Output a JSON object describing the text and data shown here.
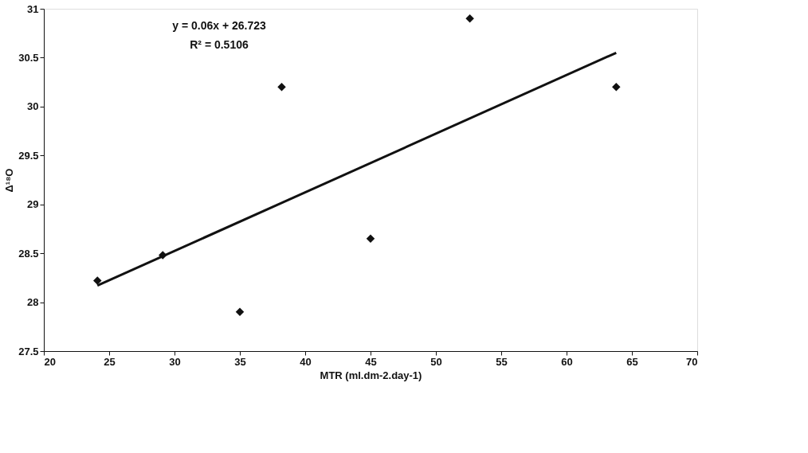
{
  "chart_data": {
    "type": "scatter",
    "xlabel": "MTR (ml.dm-2.day-1)",
    "ylabel": "Δ¹⁸O",
    "xlim": [
      20,
      70
    ],
    "xticks": [
      20,
      25,
      30,
      35,
      40,
      45,
      50,
      55,
      60,
      65,
      70
    ],
    "ylim": [
      27.5,
      31
    ],
    "yticks": [
      27.5,
      28,
      28.5,
      29,
      29.5,
      30,
      30.5,
      31
    ],
    "grid": false,
    "marker": "diamond",
    "series": [
      {
        "type": "scatter",
        "color": "#111111",
        "x": [
          24.1,
          29.1,
          35,
          38.2,
          45,
          52.6,
          63.8
        ],
        "values": [
          28.22,
          28.48,
          27.9,
          30.2,
          28.65,
          30.9,
          30.2
        ]
      },
      {
        "type": "line",
        "color": "#111111",
        "marker": "none",
        "line_style": "solid",
        "x": [
          24.1,
          63.8
        ],
        "values": [
          28.17,
          30.55
        ]
      }
    ],
    "annotations": [
      "y = 0.06x + 26.723",
      "R² = 0.5106"
    ]
  }
}
